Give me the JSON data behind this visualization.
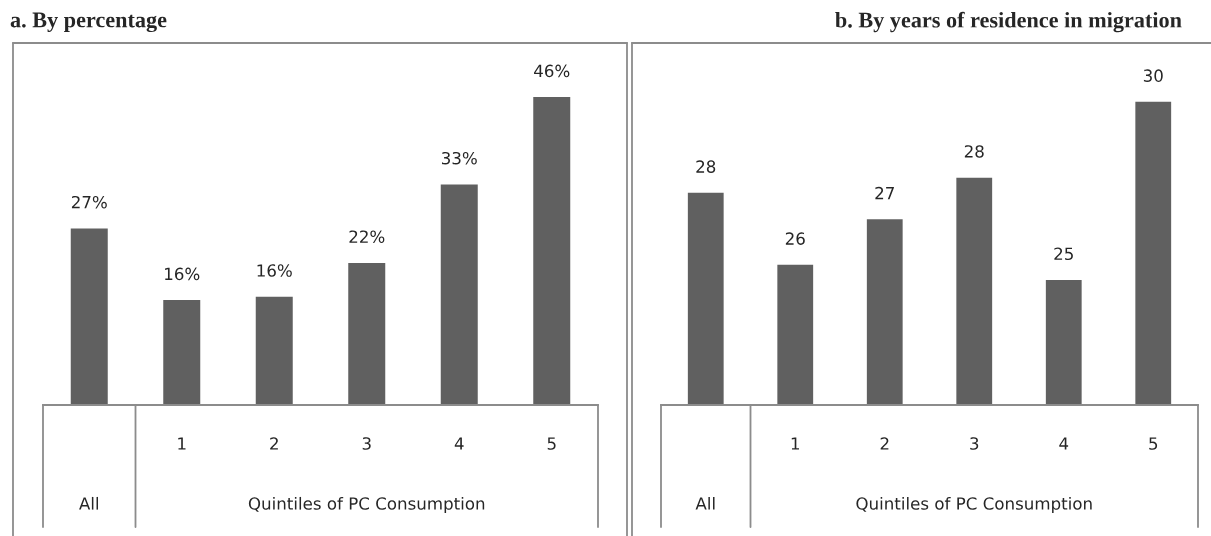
{
  "chart_data": [
    {
      "type": "bar",
      "title": "a. By percentage",
      "categories": [
        null,
        "1",
        "2",
        "3",
        "4",
        "5"
      ],
      "values": [
        26.6,
        16.0,
        16.5,
        21.5,
        33.1,
        46.0
      ],
      "value_labels": [
        "27%",
        "16%",
        "16%",
        "22%",
        "33%",
        "46%"
      ],
      "color": "#606060",
      "ylim": [
        0.5,
        53.7
      ],
      "tick_labels": "x",
      "annotations": [
        "All",
        "Quintiles of PC Consumption"
      ]
    },
    {
      "type": "bar",
      "title": "b. By years of residence in migration",
      "categories": [
        null,
        "1",
        "2",
        "3",
        "4",
        "5"
      ],
      "values": [
        27.6,
        25.7,
        26.9,
        28.0,
        25.3,
        30.0
      ],
      "value_labels": [
        "28",
        "26",
        "27",
        "28",
        "25",
        "30"
      ],
      "color": "#606060",
      "ylim": [
        22.0,
        31.5
      ],
      "tick_labels": "x",
      "annotations": [
        "All",
        "Quintiles of PC Consumption"
      ]
    }
  ]
}
